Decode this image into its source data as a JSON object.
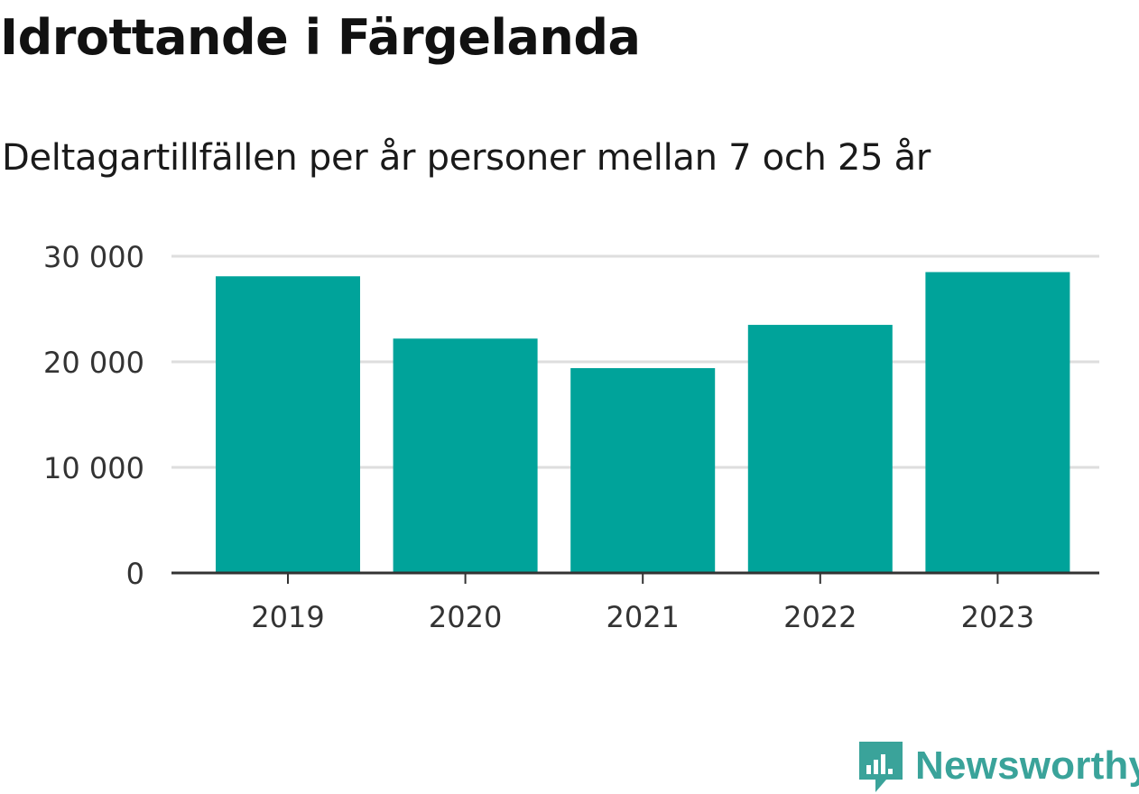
{
  "chart_data": {
    "type": "bar",
    "title": "Idrottande i Färgelanda",
    "subtitle": "Deltagartillfällen per år personer mellan 7 och 25 år",
    "categories": [
      "2019",
      "2020",
      "2021",
      "2022",
      "2023"
    ],
    "values": [
      28100,
      22200,
      19400,
      23500,
      28500
    ],
    "ylim": [
      0,
      30000
    ],
    "yticks": [
      0,
      10000,
      20000,
      30000
    ],
    "ytick_labels": [
      "0",
      "10 000",
      "20 000",
      "30 000"
    ],
    "grid": true,
    "bar_color": "#00a39a"
  },
  "brand": {
    "name": "Newsworthy",
    "icon": "newsworthy-logo-icon",
    "color": "#3aa39a"
  }
}
